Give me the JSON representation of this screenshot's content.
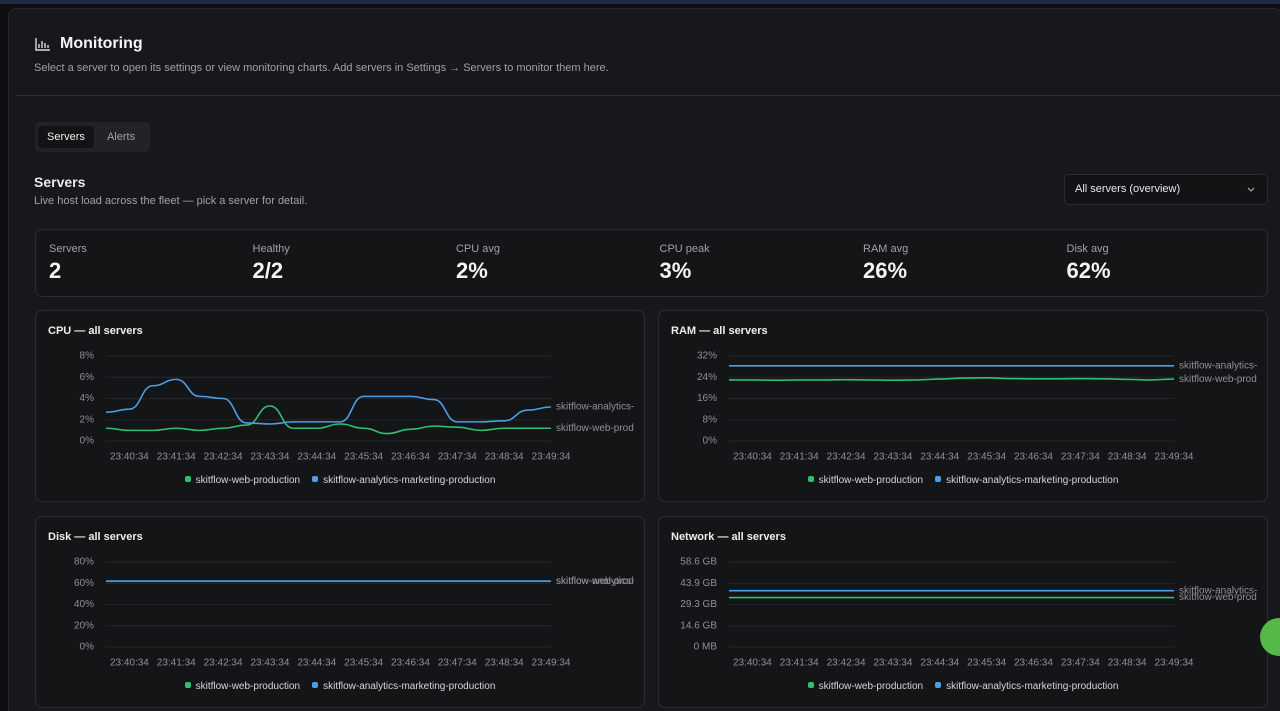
{
  "header": {
    "title": "Monitoring",
    "subtitle": "Select a server to open its settings or view monitoring charts. Add servers in Settings → Servers to monitor them here."
  },
  "tabs": [
    "Servers",
    "Alerts"
  ],
  "section": {
    "title": "Servers",
    "subtitle": "Live host load across the fleet — pick a server for detail.",
    "dropdown": "All servers (overview)"
  },
  "stats": [
    {
      "label": "Servers",
      "value": "2"
    },
    {
      "label": "Healthy",
      "value": "2/2"
    },
    {
      "label": "CPU avg",
      "value": "2%"
    },
    {
      "label": "CPU peak",
      "value": "3%"
    },
    {
      "label": "RAM avg",
      "value": "26%"
    },
    {
      "label": "Disk avg",
      "value": "62%"
    }
  ],
  "chart_data": [
    {
      "type": "line",
      "title": "CPU — all servers",
      "categories": [
        null,
        "23:40:34",
        null,
        "23:41:34",
        null,
        "23:42:34",
        null,
        "23:43:34",
        null,
        "23:44:34",
        null,
        "23:45:34",
        null,
        "23:46:34",
        null,
        "23:47:34",
        null,
        "23:48:34",
        null,
        "23:49:34"
      ],
      "ylim": [
        0,
        8
      ],
      "yticks": [
        {
          "value": 0,
          "label": "0%"
        },
        {
          "value": 2,
          "label": "2%"
        },
        {
          "value": 4,
          "label": "4%"
        },
        {
          "value": 6,
          "label": "6%"
        },
        {
          "value": 8,
          "label": "8%"
        }
      ],
      "series": [
        {
          "name": "skitflow-web-production",
          "color": "#2fbf71",
          "values": [
            1.2,
            1.0,
            1.0,
            1.2,
            1.0,
            1.2,
            1.5,
            3.3,
            1.2,
            1.2,
            1.6,
            1.2,
            0.7,
            1.1,
            1.4,
            1.3,
            1.0,
            1.2,
            1.2,
            1.2
          ]
        },
        {
          "name": "skitflow-analytics-marketing-production",
          "color": "#4a9eea",
          "values": [
            2.7,
            3.0,
            5.2,
            5.8,
            4.2,
            4.0,
            1.7,
            1.6,
            1.8,
            1.8,
            1.8,
            4.2,
            4.2,
            4.2,
            3.9,
            1.8,
            1.8,
            1.9,
            2.9,
            3.2
          ]
        }
      ]
    },
    {
      "type": "line",
      "title": "RAM — all servers",
      "categories": [
        null,
        "23:40:34",
        null,
        "23:41:34",
        null,
        "23:42:34",
        null,
        "23:43:34",
        null,
        "23:44:34",
        null,
        "23:45:34",
        null,
        "23:46:34",
        null,
        "23:47:34",
        null,
        "23:48:34",
        null,
        "23:49:34"
      ],
      "ylim": [
        0,
        32
      ],
      "yticks": [
        {
          "value": 0,
          "label": "0%"
        },
        {
          "value": 8,
          "label": "8%"
        },
        {
          "value": 16,
          "label": "16%"
        },
        {
          "value": 24,
          "label": "24%"
        },
        {
          "value": 32,
          "label": "32%"
        }
      ],
      "series": [
        {
          "name": "skitflow-web-production",
          "color": "#2fbf71",
          "values": [
            23.0,
            23.0,
            22.9,
            23.0,
            23.0,
            23.1,
            23.0,
            22.9,
            23.0,
            23.3,
            23.7,
            23.8,
            23.5,
            23.4,
            23.4,
            23.5,
            23.4,
            23.2,
            23.0,
            23.3
          ]
        },
        {
          "name": "skitflow-analytics-marketing-production",
          "color": "#4a9eea",
          "values": [
            28.3,
            28.3,
            28.3,
            28.3,
            28.3,
            28.3,
            28.3,
            28.3,
            28.3,
            28.3,
            28.3,
            28.3,
            28.3,
            28.3,
            28.3,
            28.3,
            28.3,
            28.3,
            28.3,
            28.3
          ]
        }
      ]
    },
    {
      "type": "line",
      "title": "Disk — all servers",
      "categories": [
        null,
        "23:40:34",
        null,
        "23:41:34",
        null,
        "23:42:34",
        null,
        "23:43:34",
        null,
        "23:44:34",
        null,
        "23:45:34",
        null,
        "23:46:34",
        null,
        "23:47:34",
        null,
        "23:48:34",
        null,
        "23:49:34"
      ],
      "ylim": [
        0,
        80
      ],
      "yticks": [
        {
          "value": 0,
          "label": "0%"
        },
        {
          "value": 20,
          "label": "20%"
        },
        {
          "value": 40,
          "label": "40%"
        },
        {
          "value": 60,
          "label": "60%"
        },
        {
          "value": 80,
          "label": "80%"
        }
      ],
      "series": [
        {
          "name": "skitflow-web-production",
          "color": "#2fbf71",
          "values": [
            62,
            62,
            62,
            62,
            62,
            62,
            62,
            62,
            62,
            62,
            62,
            62,
            62,
            62,
            62,
            62,
            62,
            62,
            62,
            62
          ]
        },
        {
          "name": "skitflow-analytics-marketing-production",
          "color": "#4a9eea",
          "values": [
            62,
            62,
            62,
            62,
            62,
            62,
            62,
            62,
            62,
            62,
            62,
            62,
            62,
            62,
            62,
            62,
            62,
            62,
            62,
            62
          ]
        }
      ]
    },
    {
      "type": "line",
      "title": "Network — all servers",
      "categories": [
        null,
        "23:40:34",
        null,
        "23:41:34",
        null,
        "23:42:34",
        null,
        "23:43:34",
        null,
        "23:44:34",
        null,
        "23:45:34",
        null,
        "23:46:34",
        null,
        "23:47:34",
        null,
        "23:48:34",
        null,
        "23:49:34"
      ],
      "ylim": [
        0,
        58.6
      ],
      "yticks": [
        {
          "value": 0,
          "label": "0 MB"
        },
        {
          "value": 14.6,
          "label": "14.6 GB"
        },
        {
          "value": 29.3,
          "label": "29.3 GB"
        },
        {
          "value": 43.9,
          "label": "43.9 GB"
        },
        {
          "value": 58.6,
          "label": "58.6 GB"
        }
      ],
      "series": [
        {
          "name": "skitflow-web-production",
          "color": "#2fbf71",
          "values": [
            34.1,
            34.1,
            34.1,
            34.1,
            34.1,
            34.1,
            34.1,
            34.1,
            34.1,
            34.1,
            34.1,
            34.1,
            34.1,
            34.1,
            34.1,
            34.1,
            34.1,
            34.1,
            34.1,
            34.1
          ]
        },
        {
          "name": "skitflow-analytics-marketing-production",
          "color": "#4a9eea",
          "values": [
            38.8,
            38.8,
            38.8,
            38.8,
            38.8,
            38.8,
            38.8,
            38.8,
            38.8,
            38.8,
            38.8,
            38.8,
            38.8,
            38.8,
            38.8,
            38.8,
            38.8,
            38.8,
            38.8,
            38.8
          ]
        }
      ]
    }
  ]
}
